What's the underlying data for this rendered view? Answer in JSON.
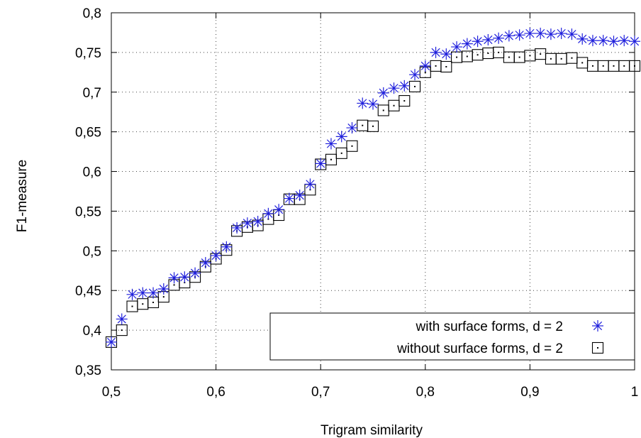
{
  "chart_data": {
    "type": "scatter",
    "title": "",
    "xlabel": "Trigram similarity",
    "ylabel": "F1-measure",
    "xlim": [
      0.5,
      1.0
    ],
    "ylim": [
      0.35,
      0.8
    ],
    "xticks": [
      "0,5",
      "0,6",
      "0,7",
      "0,8",
      "0,9",
      "1"
    ],
    "yticks": [
      "0,35",
      "0,4",
      "0,45",
      "0,5",
      "0,55",
      "0,6",
      "0,65",
      "0,7",
      "0,75",
      "0,8"
    ],
    "grid": true,
    "legend_position": "bottom-right",
    "x": [
      0.5,
      0.51,
      0.52,
      0.53,
      0.54,
      0.55,
      0.56,
      0.57,
      0.58,
      0.59,
      0.6,
      0.61,
      0.62,
      0.63,
      0.64,
      0.65,
      0.66,
      0.67,
      0.68,
      0.69,
      0.7,
      0.71,
      0.72,
      0.73,
      0.74,
      0.75,
      0.76,
      0.77,
      0.78,
      0.79,
      0.8,
      0.81,
      0.82,
      0.83,
      0.84,
      0.85,
      0.86,
      0.87,
      0.88,
      0.89,
      0.9,
      0.91,
      0.92,
      0.93,
      0.94,
      0.95,
      0.96,
      0.97,
      0.98,
      0.99,
      1.0
    ],
    "series": [
      {
        "name": "with surface forms, d = 2",
        "marker": "asterisk",
        "color": "#1f1fdc",
        "values": [
          0.385,
          0.414,
          0.445,
          0.447,
          0.447,
          0.452,
          0.466,
          0.467,
          0.472,
          0.485,
          0.494,
          0.505,
          0.529,
          0.535,
          0.537,
          0.547,
          0.552,
          0.566,
          0.57,
          0.584,
          0.61,
          0.635,
          0.644,
          0.655,
          0.686,
          0.685,
          0.699,
          0.705,
          0.708,
          0.722,
          0.733,
          0.75,
          0.748,
          0.757,
          0.761,
          0.764,
          0.766,
          0.768,
          0.771,
          0.772,
          0.774,
          0.774,
          0.773,
          0.774,
          0.773,
          0.767,
          0.765,
          0.765,
          0.764,
          0.765,
          0.764
        ]
      },
      {
        "name": "without surface forms, d = 2",
        "marker": "boxed-dot",
        "color": "#000000",
        "values": [
          0.385,
          0.4,
          0.43,
          0.433,
          0.435,
          0.442,
          0.457,
          0.46,
          0.467,
          0.48,
          0.49,
          0.501,
          0.525,
          0.53,
          0.532,
          0.54,
          0.545,
          0.565,
          0.565,
          0.577,
          0.609,
          0.615,
          0.623,
          0.632,
          0.658,
          0.657,
          0.677,
          0.683,
          0.689,
          0.707,
          0.725,
          0.733,
          0.732,
          0.744,
          0.745,
          0.747,
          0.749,
          0.75,
          0.744,
          0.744,
          0.746,
          0.748,
          0.742,
          0.742,
          0.743,
          0.737,
          0.733,
          0.733,
          0.733,
          0.733,
          0.733
        ]
      }
    ]
  }
}
